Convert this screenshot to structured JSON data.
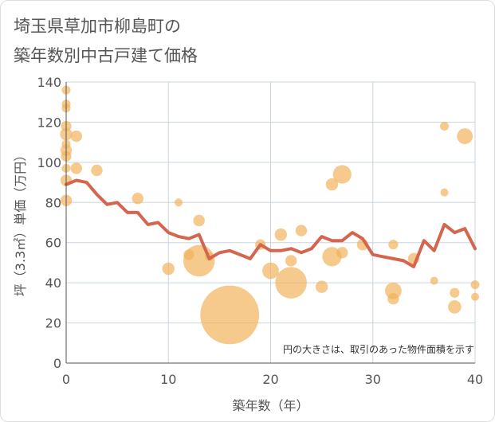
{
  "chart_data": {
    "type": "scatter",
    "title_lines": [
      "埼玉県草加市柳島町の",
      "築年数別中古戸建て価格"
    ],
    "xlabel": "築年数（年）",
    "ylabel": "坪（3.3㎡）単価（万円）",
    "xlim": [
      0,
      40
    ],
    "ylim": [
      0,
      140
    ],
    "x_ticks": [
      0,
      10,
      20,
      30,
      40
    ],
    "y_ticks": [
      0,
      20,
      40,
      60,
      80,
      100,
      120,
      140
    ],
    "grid": true,
    "annotation": "円の大きさは、取引のあった物件面積を示す",
    "colors": {
      "bubble": "#f2b25c",
      "line": "#d4654f",
      "grid": "#c8d4e0",
      "axis": "#555555"
    },
    "bubbles": [
      {
        "x": 0,
        "y": 136,
        "s": 1
      },
      {
        "x": 0,
        "y": 129,
        "s": 1
      },
      {
        "x": 0,
        "y": 127,
        "s": 1
      },
      {
        "x": 0,
        "y": 118,
        "s": 1.2
      },
      {
        "x": 0,
        "y": 114,
        "s": 1.4
      },
      {
        "x": 0,
        "y": 109,
        "s": 1
      },
      {
        "x": 0,
        "y": 106,
        "s": 1.3
      },
      {
        "x": 0,
        "y": 103,
        "s": 1.2
      },
      {
        "x": 0,
        "y": 97,
        "s": 1
      },
      {
        "x": 0,
        "y": 91,
        "s": 1.3
      },
      {
        "x": 0,
        "y": 81,
        "s": 1.3
      },
      {
        "x": 1,
        "y": 113,
        "s": 1.3
      },
      {
        "x": 1,
        "y": 97,
        "s": 1.3
      },
      {
        "x": 3,
        "y": 96,
        "s": 1.3
      },
      {
        "x": 7,
        "y": 82,
        "s": 1.3
      },
      {
        "x": 11,
        "y": 80,
        "s": 0.9
      },
      {
        "x": 10,
        "y": 47,
        "s": 1.4
      },
      {
        "x": 12,
        "y": 54,
        "s": 1.2
      },
      {
        "x": 13,
        "y": 71,
        "s": 1.3
      },
      {
        "x": 13,
        "y": 51,
        "s": 3.6
      },
      {
        "x": 14,
        "y": 53,
        "s": 1
      },
      {
        "x": 16,
        "y": 24,
        "s": 6.7
      },
      {
        "x": 19,
        "y": 59,
        "s": 1.2
      },
      {
        "x": 20,
        "y": 46,
        "s": 1.9
      },
      {
        "x": 21,
        "y": 64,
        "s": 1.4
      },
      {
        "x": 22,
        "y": 51,
        "s": 1.3
      },
      {
        "x": 22,
        "y": 40,
        "s": 3.6
      },
      {
        "x": 23,
        "y": 66,
        "s": 1.3
      },
      {
        "x": 25,
        "y": 38,
        "s": 1.4
      },
      {
        "x": 26,
        "y": 89,
        "s": 1.4
      },
      {
        "x": 26,
        "y": 53,
        "s": 2.2
      },
      {
        "x": 27,
        "y": 94,
        "s": 2.1
      },
      {
        "x": 27,
        "y": 55,
        "s": 1.3
      },
      {
        "x": 29,
        "y": 59,
        "s": 1.3
      },
      {
        "x": 32,
        "y": 59,
        "s": 1.1
      },
      {
        "x": 32,
        "y": 36,
        "s": 1.9
      },
      {
        "x": 32,
        "y": 32,
        "s": 1.3
      },
      {
        "x": 34,
        "y": 52,
        "s": 1.3
      },
      {
        "x": 36,
        "y": 41,
        "s": 0.9
      },
      {
        "x": 37,
        "y": 118,
        "s": 1
      },
      {
        "x": 37,
        "y": 85,
        "s": 0.9
      },
      {
        "x": 38,
        "y": 35,
        "s": 1.1
      },
      {
        "x": 38,
        "y": 28,
        "s": 1.5
      },
      {
        "x": 39,
        "y": 113,
        "s": 1.8
      },
      {
        "x": 40,
        "y": 39,
        "s": 1
      },
      {
        "x": 40,
        "y": 33,
        "s": 0.9
      }
    ],
    "trend_line": {
      "x": [
        0,
        1,
        2,
        3,
        4,
        5,
        6,
        7,
        8,
        9,
        10,
        11,
        12,
        13,
        14,
        15,
        16,
        17,
        18,
        19,
        20,
        21,
        22,
        23,
        24,
        25,
        26,
        27,
        28,
        29,
        30,
        31,
        32,
        33,
        34,
        35,
        36,
        37,
        38,
        39,
        40
      ],
      "y": [
        89,
        91,
        90,
        84,
        79,
        80,
        75,
        75,
        69,
        70,
        65,
        63,
        62,
        64,
        52,
        55,
        56,
        54,
        52,
        59,
        56,
        56,
        57,
        55,
        57,
        63,
        61,
        61,
        65,
        62,
        54,
        53,
        52,
        51,
        48,
        61,
        56,
        69,
        65,
        67,
        57
      ]
    }
  }
}
